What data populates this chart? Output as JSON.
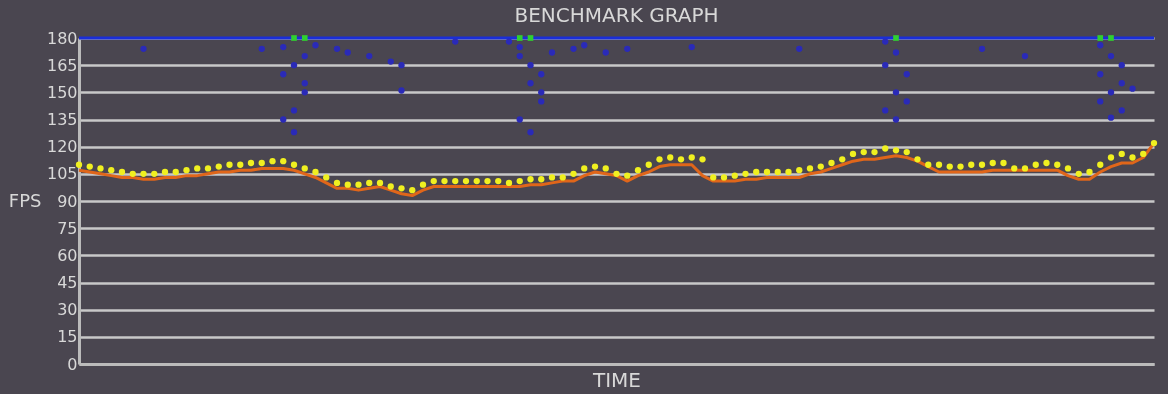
{
  "chart_data": {
    "type": "scatter",
    "title": "BENCHMARK GRAPH",
    "xlabel": "TIME",
    "ylabel": "FPS",
    "categories": [
      null,
      null,
      null,
      null,
      null,
      null,
      null,
      null,
      null,
      null,
      null,
      null,
      null,
      null,
      null,
      null,
      null,
      null,
      null,
      null,
      null,
      null,
      null,
      null,
      null,
      null,
      null,
      null,
      null,
      null,
      null,
      null,
      null,
      null,
      null,
      null,
      null,
      null,
      null,
      null,
      null,
      null,
      null,
      null,
      null,
      null,
      null,
      null,
      null,
      null,
      null,
      null,
      null,
      null,
      null,
      null,
      null,
      null,
      null,
      null,
      null,
      null,
      null,
      null,
      null,
      null,
      null,
      null,
      null,
      null,
      null,
      null,
      null,
      null,
      null,
      null,
      null,
      null,
      null,
      null,
      null,
      null,
      null,
      null,
      null,
      null,
      null,
      null,
      null,
      null,
      null,
      null,
      null,
      null,
      null,
      null,
      null,
      null,
      null,
      null,
      null
    ],
    "ylim": [
      0,
      180
    ],
    "yticks": [
      0,
      15,
      30,
      45,
      60,
      75,
      90,
      105,
      120,
      135,
      150,
      165,
      180
    ],
    "grid": "y",
    "tick_labels": "y",
    "legend": false,
    "line_style": "solid",
    "series": [
      {
        "type": "line",
        "color": "#1a2ed8",
        "values": [
          180,
          180,
          180,
          180,
          180,
          180,
          180,
          180,
          180,
          180,
          180,
          180,
          180,
          180,
          180,
          180,
          180,
          180,
          180,
          180,
          180,
          180,
          180,
          180,
          180,
          180,
          180,
          180,
          180,
          180,
          180,
          180,
          180,
          180,
          180,
          180,
          180,
          180,
          180,
          180,
          180,
          180,
          180,
          180,
          180,
          180,
          180,
          180,
          180,
          180,
          180,
          180,
          180,
          180,
          180,
          180,
          180,
          180,
          180,
          180,
          180,
          180,
          180,
          180,
          180,
          180,
          180,
          180,
          180,
          180,
          180,
          180,
          180,
          180,
          180,
          180,
          180,
          180,
          180,
          180,
          180,
          180,
          180,
          180,
          180,
          180,
          180,
          180,
          180,
          180,
          180,
          180,
          180,
          180,
          180,
          180,
          180,
          180,
          180,
          180,
          180
        ]
      },
      {
        "type": "scatter",
        "marker": "circle",
        "color": "#2a2ab8",
        "values": [
          null,
          null,
          null,
          null,
          null,
          null,
          174,
          null,
          null,
          null,
          null,
          null,
          null,
          null,
          null,
          null,
          null,
          174,
          null,
          175,
          165,
          150,
          176,
          null,
          174,
          172,
          null,
          170,
          null,
          167,
          151,
          null,
          null,
          null,
          null,
          178,
          null,
          null,
          null,
          null,
          178,
          175,
          165,
          160,
          172,
          null,
          174,
          176,
          null,
          172,
          null,
          174,
          null,
          null,
          null,
          null,
          null,
          175,
          null,
          null,
          null,
          null,
          null,
          null,
          null,
          null,
          null,
          174,
          null,
          null,
          null,
          null,
          null,
          null,
          null,
          178,
          172,
          160,
          null,
          null,
          null,
          null,
          null,
          null,
          174,
          null,
          null,
          null,
          170,
          null,
          null,
          null,
          null,
          null,
          null,
          176,
          170,
          165,
          152,
          null,
          null
        ]
      },
      {
        "type": "scatter",
        "marker": "circle",
        "color": "#2a2ab8",
        "values": [
          null,
          null,
          null,
          null,
          null,
          null,
          null,
          null,
          null,
          null,
          null,
          null,
          null,
          null,
          null,
          null,
          null,
          null,
          null,
          160,
          140,
          170,
          null,
          null,
          null,
          null,
          null,
          null,
          null,
          null,
          165,
          null,
          null,
          null,
          null,
          null,
          null,
          null,
          null,
          null,
          null,
          170,
          155,
          145,
          null,
          null,
          null,
          null,
          null,
          null,
          null,
          null,
          null,
          null,
          null,
          null,
          null,
          null,
          null,
          null,
          null,
          null,
          null,
          null,
          null,
          null,
          null,
          null,
          null,
          null,
          null,
          null,
          null,
          null,
          null,
          165,
          150,
          145,
          null,
          null,
          null,
          null,
          null,
          null,
          null,
          null,
          null,
          null,
          null,
          null,
          null,
          null,
          null,
          null,
          null,
          160,
          150,
          155,
          null,
          null,
          null
        ]
      },
      {
        "type": "scatter",
        "marker": "circle",
        "color": "#2a2ab8",
        "values": [
          null,
          null,
          null,
          null,
          null,
          null,
          null,
          null,
          null,
          null,
          null,
          null,
          null,
          null,
          null,
          null,
          null,
          null,
          null,
          135,
          128,
          155,
          null,
          null,
          null,
          null,
          null,
          null,
          null,
          null,
          null,
          null,
          null,
          null,
          null,
          null,
          null,
          null,
          null,
          null,
          null,
          135,
          128,
          150,
          null,
          null,
          null,
          null,
          null,
          null,
          null,
          null,
          null,
          null,
          null,
          null,
          null,
          null,
          null,
          null,
          null,
          null,
          null,
          null,
          null,
          null,
          null,
          null,
          null,
          null,
          null,
          null,
          null,
          null,
          null,
          140,
          135,
          null,
          null,
          null,
          null,
          null,
          null,
          null,
          null,
          null,
          null,
          null,
          null,
          null,
          null,
          null,
          null,
          null,
          null,
          145,
          136,
          140,
          null,
          null,
          null
        ]
      },
      {
        "type": "scatter",
        "marker": "square",
        "color": "#30d030",
        "values": [
          null,
          null,
          null,
          null,
          null,
          null,
          null,
          null,
          null,
          null,
          null,
          null,
          null,
          null,
          null,
          null,
          null,
          null,
          null,
          null,
          180,
          180,
          null,
          null,
          null,
          null,
          null,
          null,
          null,
          null,
          null,
          null,
          null,
          null,
          null,
          null,
          null,
          null,
          null,
          null,
          null,
          180,
          180,
          null,
          null,
          null,
          null,
          null,
          null,
          null,
          null,
          null,
          null,
          null,
          null,
          null,
          null,
          null,
          null,
          null,
          null,
          null,
          null,
          null,
          null,
          null,
          null,
          null,
          null,
          null,
          null,
          null,
          null,
          null,
          null,
          null,
          180,
          null,
          null,
          null,
          null,
          null,
          null,
          null,
          null,
          null,
          null,
          null,
          null,
          null,
          null,
          null,
          null,
          null,
          null,
          180,
          180,
          null,
          null,
          null,
          null
        ]
      },
      {
        "type": "line",
        "color": "#e0661a",
        "values": [
          107,
          106,
          105,
          104,
          103,
          103,
          102,
          102,
          103,
          103,
          104,
          104,
          105,
          106,
          106,
          107,
          107,
          108,
          108,
          108,
          107,
          105,
          103,
          100,
          97,
          97,
          96,
          97,
          98,
          96,
          94,
          93,
          96,
          98,
          98,
          98,
          98,
          98,
          98,
          98,
          98,
          98,
          99,
          99,
          100,
          101,
          101,
          104,
          106,
          105,
          104,
          101,
          104,
          106,
          109,
          110,
          110,
          110,
          104,
          101,
          101,
          101,
          102,
          102,
          103,
          103,
          103,
          103,
          105,
          106,
          108,
          110,
          112,
          113,
          113,
          114,
          115,
          114,
          112,
          109,
          106,
          106,
          106,
          106,
          106,
          107,
          107,
          107,
          107,
          107,
          107,
          107,
          104,
          102,
          102,
          106,
          109,
          111,
          111,
          114,
          122
        ]
      },
      {
        "type": "scatter",
        "marker": "circle",
        "color": "#f0f020",
        "values": [
          110,
          109,
          108,
          107,
          106,
          105,
          105,
          105,
          106,
          106,
          107,
          108,
          108,
          109,
          110,
          110,
          111,
          111,
          112,
          112,
          110,
          108,
          106,
          103,
          100,
          99,
          99,
          100,
          100,
          98,
          97,
          96,
          99,
          101,
          101,
          101,
          101,
          101,
          101,
          101,
          100,
          101,
          102,
          102,
          103,
          103,
          105,
          108,
          109,
          108,
          105,
          104,
          107,
          110,
          113,
          114,
          113,
          114,
          113,
          103,
          103,
          104,
          105,
          106,
          106,
          106,
          106,
          107,
          108,
          109,
          111,
          113,
          116,
          117,
          117,
          119,
          118,
          117,
          113,
          110,
          110,
          109,
          109,
          110,
          110,
          111,
          111,
          108,
          108,
          110,
          111,
          110,
          108,
          105,
          106,
          110,
          114,
          116,
          114,
          116,
          122
        ]
      }
    ]
  }
}
